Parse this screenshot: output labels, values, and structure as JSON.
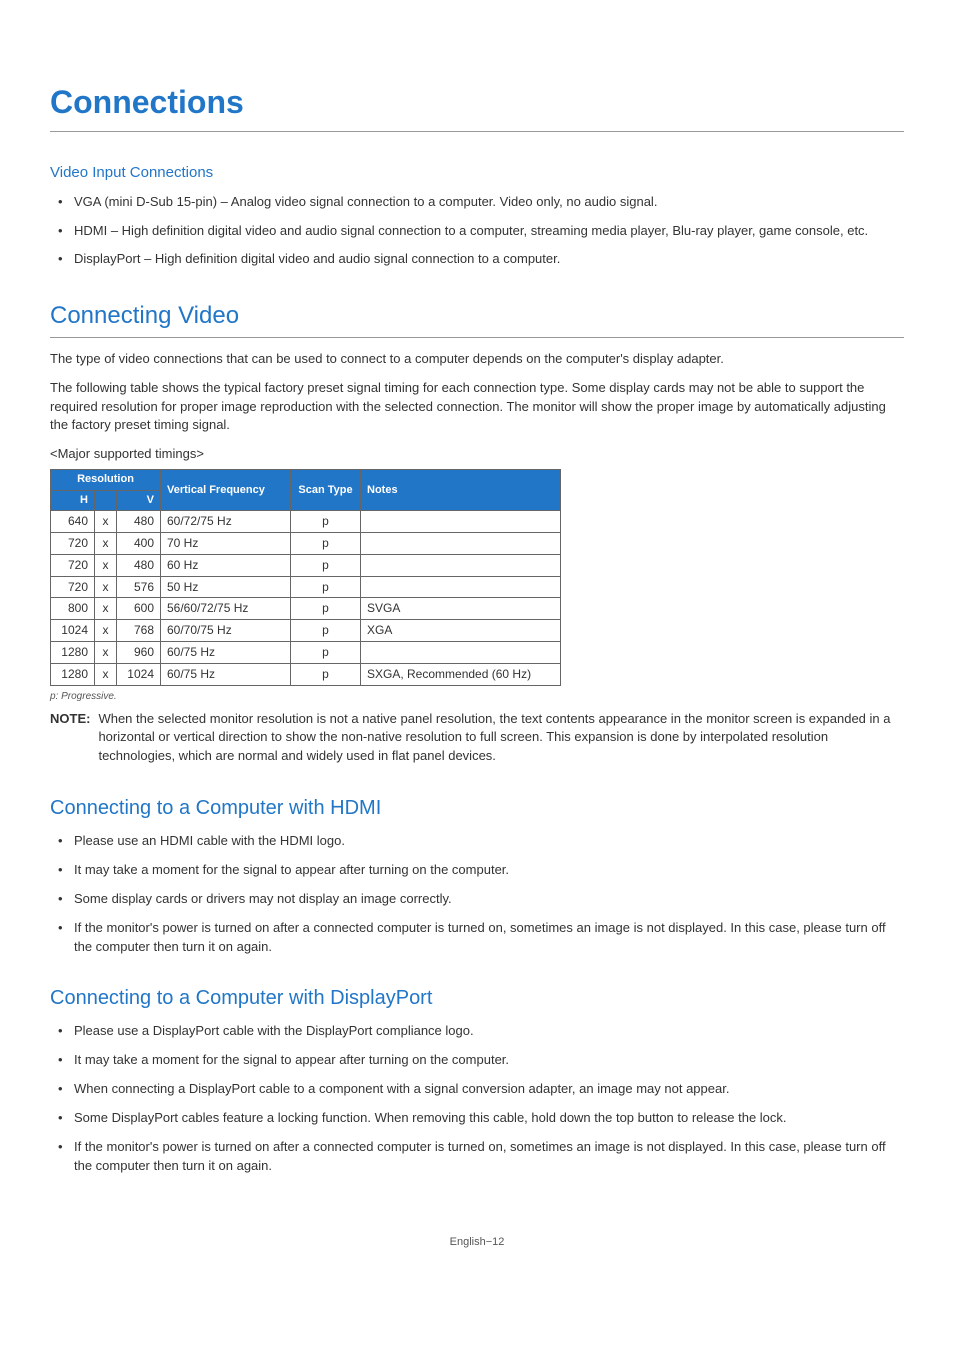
{
  "page": {
    "title": "Connections",
    "footer": "English−12"
  },
  "video_input": {
    "heading": "Video Input Connections",
    "items": [
      "VGA (mini D-Sub 15-pin) – Analog video signal connection to a computer. Video only, no audio signal.",
      "HDMI – High definition digital video and audio signal connection to a computer, streaming media player, Blu-ray player, game console, etc.",
      "DisplayPort – High definition digital video and audio signal connection to a computer."
    ]
  },
  "connecting_video": {
    "heading": "Connecting Video",
    "para1": "The type of video connections that can be used to connect to a computer depends on the computer's display adapter.",
    "para2": "The following table shows the typical factory preset signal timing for each connection type. Some display cards may not be able to support the required resolution for proper image reproduction with the selected connection. The monitor will show the proper image by automatically adjusting the factory preset timing signal.",
    "caption": "<Major supported timings>",
    "table": {
      "headers": {
        "resolution": "Resolution",
        "h": "H",
        "v": "V",
        "vf": "Vertical Frequency",
        "scan": "Scan Type",
        "notes": "Notes"
      },
      "rows": [
        {
          "h": "640",
          "v": "480",
          "vf": "60/72/75 Hz",
          "scan": "p",
          "notes": ""
        },
        {
          "h": "720",
          "v": "400",
          "vf": "70 Hz",
          "scan": "p",
          "notes": ""
        },
        {
          "h": "720",
          "v": "480",
          "vf": "60 Hz",
          "scan": "p",
          "notes": ""
        },
        {
          "h": "720",
          "v": "576",
          "vf": "50 Hz",
          "scan": "p",
          "notes": ""
        },
        {
          "h": "800",
          "v": "600",
          "vf": "56/60/72/75 Hz",
          "scan": "p",
          "notes": "SVGA"
        },
        {
          "h": "1024",
          "v": "768",
          "vf": "60/70/75 Hz",
          "scan": "p",
          "notes": "XGA"
        },
        {
          "h": "1280",
          "v": "960",
          "vf": "60/75 Hz",
          "scan": "p",
          "notes": ""
        },
        {
          "h": "1280",
          "v": "1024",
          "vf": "60/75 Hz",
          "scan": "p",
          "notes": "SXGA, Recommended (60 Hz)"
        }
      ]
    },
    "footnote": "p:  Progressive.",
    "note_label": "NOTE:",
    "note_body": "When the selected monitor resolution is not a native panel resolution, the text contents appearance in the monitor screen is expanded in a horizontal or vertical direction to show the non-native resolution to full screen. This expansion is done by interpolated resolution technologies, which are normal and widely used in flat panel devices."
  },
  "hdmi": {
    "heading": "Connecting to a Computer with HDMI",
    "items": [
      "Please use an HDMI cable with the HDMI logo.",
      "It may take a moment for the signal to appear after turning on the computer.",
      "Some display cards or drivers may not display an image correctly.",
      "If the monitor's power is turned on after a connected computer is turned on, sometimes an image is not displayed. In this case, please turn off the computer then turn it on again."
    ]
  },
  "dp": {
    "heading": "Connecting to a Computer with DisplayPort",
    "items": [
      "Please use a DisplayPort cable with the DisplayPort compliance logo.",
      "It may take a moment for the signal to appear after turning on the computer.",
      "When connecting a DisplayPort cable to a component with a signal conversion adapter, an image may not appear.",
      "Some DisplayPort cables feature a locking function. When removing this cable, hold down the top button to release the lock.",
      "If the monitor's power is turned on after a connected computer is turned on, sometimes an image is not displayed. In this case, please turn off the computer then turn it on again."
    ]
  },
  "colors": {
    "accent": "#2176c7",
    "text": "#333333",
    "border": "#666666",
    "rule": "#999999",
    "background": "#ffffff"
  }
}
